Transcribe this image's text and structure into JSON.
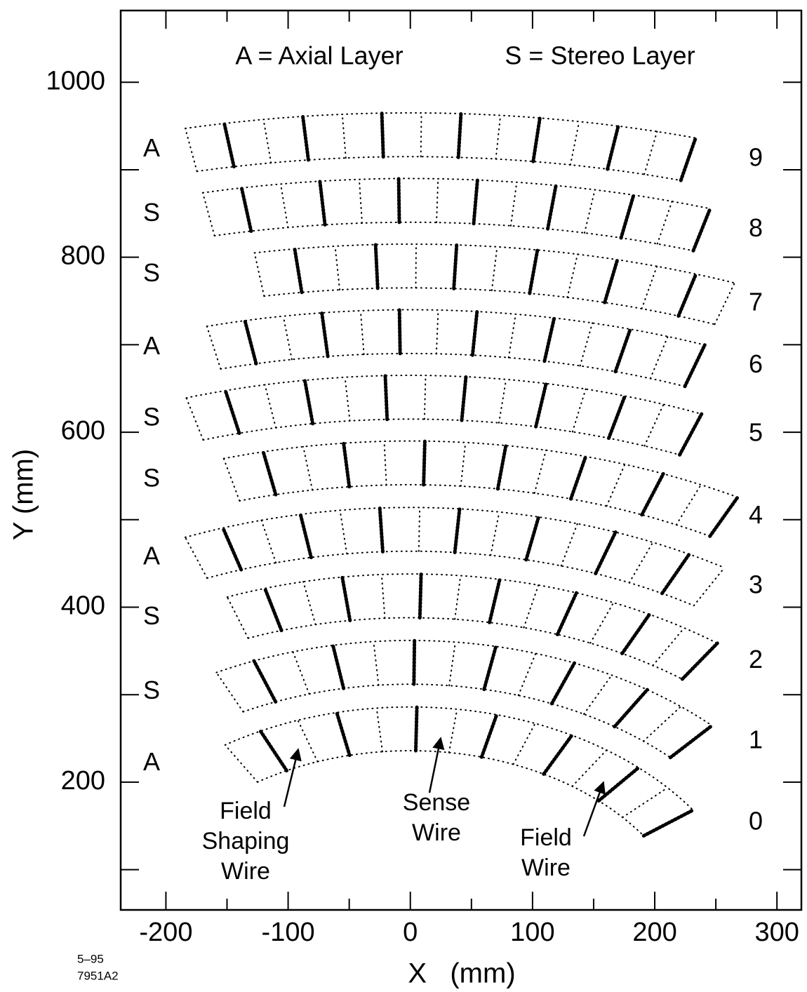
{
  "chart_data": {
    "type": "drift-cells",
    "xlabel": "X   (mm)",
    "ylabel": "Y  (mm)",
    "xlim": [
      -237,
      320
    ],
    "ylim": [
      54,
      1082
    ],
    "xticks": [
      -200,
      -100,
      0,
      100,
      200,
      300
    ],
    "yticks": [
      200,
      400,
      600,
      800,
      1000
    ],
    "minor_xticks": [
      -150,
      -50,
      50,
      150,
      250
    ],
    "minor_yticks": [
      100,
      300,
      500,
      700,
      900
    ],
    "legend": [
      "A = Axial Layer",
      "S = Stereo Layer"
    ],
    "layers": [
      {
        "number": 0,
        "type": "A",
        "r_inner": 236,
        "r_outer": 286,
        "phi_start": -32,
        "phi_end": 54,
        "cells": 13
      },
      {
        "number": 1,
        "type": "S",
        "r_inner": 312,
        "r_outer": 362,
        "phi_start": -26,
        "phi_end": 43,
        "cells": 13
      },
      {
        "number": 2,
        "type": "S",
        "r_inner": 388,
        "r_outer": 438,
        "phi_start": -20,
        "phi_end": 35,
        "cells": 13
      },
      {
        "number": 3,
        "type": "A",
        "r_inner": 464,
        "r_outer": 514,
        "phi_start": -21,
        "phi_end": 30,
        "cells": 14
      },
      {
        "number": 4,
        "type": "S",
        "r_inner": 540,
        "r_outer": 590,
        "phi_start": -15,
        "phi_end": 27,
        "cells": 13
      },
      {
        "number": 5,
        "type": "S",
        "r_inner": 615,
        "r_outer": 665,
        "phi_start": -16,
        "phi_end": 21,
        "cells": 13
      },
      {
        "number": 6,
        "type": "A",
        "r_inner": 690,
        "r_outer": 740,
        "phi_start": -13,
        "phi_end": 19,
        "cells": 13
      },
      {
        "number": 7,
        "type": "S",
        "r_inner": 765,
        "r_outer": 815,
        "phi_start": -9,
        "phi_end": 19,
        "cells": 12
      },
      {
        "number": 8,
        "type": "S",
        "r_inner": 840,
        "r_outer": 890,
        "phi_start": -11,
        "phi_end": 16,
        "cells": 13
      },
      {
        "number": 9,
        "type": "A",
        "r_inner": 915,
        "r_outer": 965,
        "phi_start": -11,
        "phi_end": 14,
        "cells": 13
      }
    ],
    "annotations": [
      {
        "lines": [
          "Field",
          "Shaping",
          "Wire"
        ]
      },
      {
        "lines": [
          "Sense",
          "Wire"
        ]
      },
      {
        "lines": [
          "Field",
          "Wire"
        ]
      }
    ],
    "footnote": [
      "5–95",
      "7951A2"
    ]
  }
}
